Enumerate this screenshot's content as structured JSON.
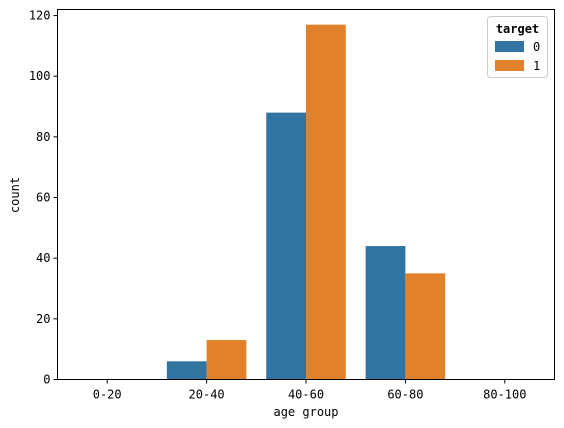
{
  "chart_data": {
    "type": "bar",
    "xlabel": "age group",
    "ylabel": "count",
    "categories": [
      "0-20",
      "20-40",
      "40-60",
      "60-80",
      "80-100"
    ],
    "series": [
      {
        "name": "0",
        "values": [
          0,
          6,
          88,
          44,
          0
        ]
      },
      {
        "name": "1",
        "values": [
          0,
          13,
          117,
          35,
          0
        ]
      }
    ],
    "ylim": [
      0,
      122
    ],
    "yticks": [
      0,
      20,
      40,
      60,
      80,
      100,
      120
    ],
    "grid": false,
    "legend": {
      "title": "target",
      "placement": "top-right"
    },
    "colors": [
      "#3274a1",
      "#e1812c"
    ]
  }
}
